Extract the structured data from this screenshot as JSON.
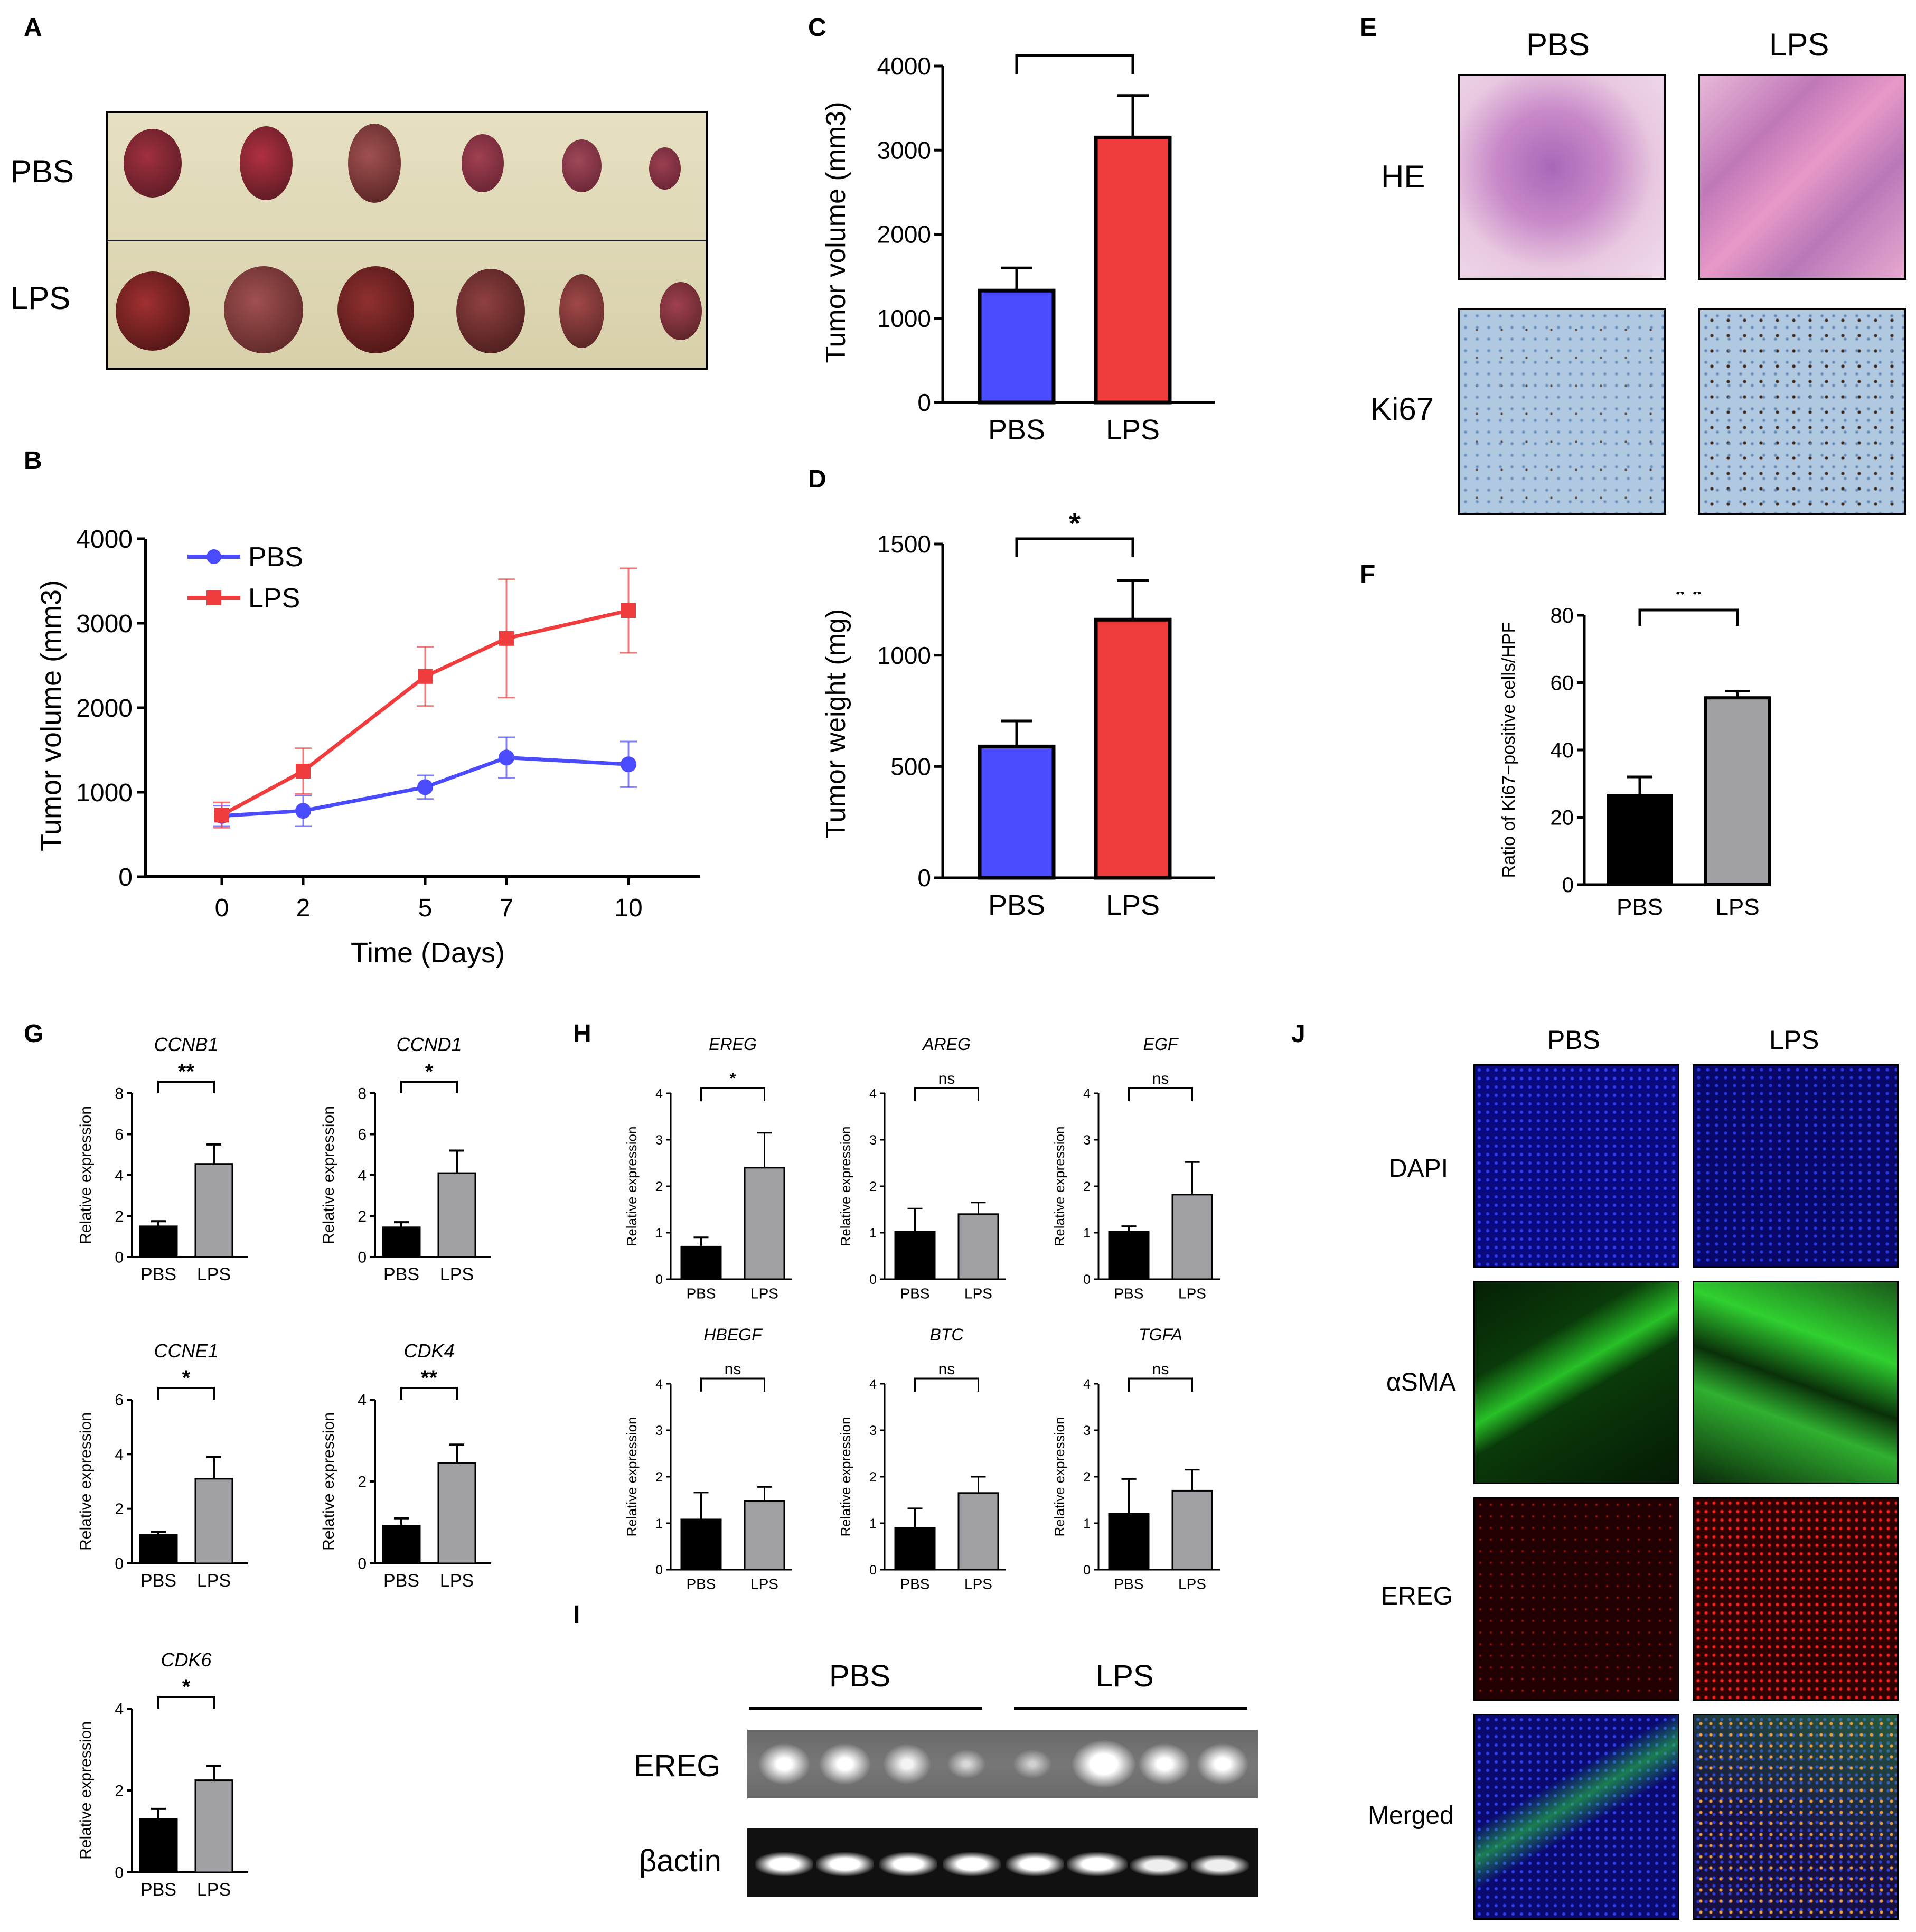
{
  "panels": {
    "A": {
      "label": "A",
      "rows": [
        "PBS",
        "LPS"
      ]
    },
    "B": {
      "label": "B"
    },
    "C": {
      "label": "C"
    },
    "D": {
      "label": "D"
    },
    "E": {
      "label": "E",
      "cols": [
        "PBS",
        "LPS"
      ],
      "rows": [
        "HE",
        "Ki67"
      ]
    },
    "F": {
      "label": "F"
    },
    "G": {
      "label": "G"
    },
    "H": {
      "label": "H"
    },
    "I": {
      "label": "I",
      "groups": [
        "PBS",
        "LPS"
      ],
      "rows": [
        "EREG",
        "βactin"
      ]
    },
    "J": {
      "label": "J",
      "cols": [
        "PBS",
        "LPS"
      ],
      "rows": [
        "DAPI",
        "αSMA",
        "EREG",
        "Merged"
      ]
    }
  },
  "colors": {
    "pbs_blue": "#4a4aff",
    "lps_red": "#f03c3c",
    "black_bar": "#000000",
    "grey_bar": "#a0a0a4"
  },
  "chart_data": [
    {
      "id": "B",
      "type": "line",
      "xlabel": "Time (Days)",
      "ylabel": "Tumor volume (mm3)",
      "x": [
        0,
        2,
        5,
        7,
        10
      ],
      "xticks": [
        "0",
        "2",
        "5",
        "7",
        "10"
      ],
      "ylim": [
        0,
        4000
      ],
      "yticks": [
        "0",
        "1000",
        "2000",
        "3000",
        "4000"
      ],
      "series": [
        {
          "name": "PBS",
          "color": "#4a4aff",
          "marker": "circle",
          "values": [
            720,
            780,
            1060,
            1410,
            1330
          ],
          "err": [
            120,
            180,
            140,
            240,
            270
          ]
        },
        {
          "name": "LPS",
          "color": "#f03c3c",
          "marker": "square",
          "values": [
            730,
            1250,
            2370,
            2820,
            3150
          ],
          "err": [
            150,
            270,
            350,
            700,
            500
          ]
        }
      ],
      "legend": "top-left"
    },
    {
      "id": "C",
      "type": "bar",
      "ylabel": "Tumor volume (mm3)",
      "categories": [
        "PBS",
        "LPS"
      ],
      "values": [
        1330,
        3150
      ],
      "err": [
        270,
        500
      ],
      "colors": [
        "#4a4aff",
        "#f03c3c"
      ],
      "ylim": [
        0,
        4000
      ],
      "yticks": [
        "0",
        "1000",
        "2000",
        "3000",
        "4000"
      ],
      "significance": "**"
    },
    {
      "id": "D",
      "type": "bar",
      "ylabel": "Tumor weight (mg)",
      "categories": [
        "PBS",
        "LPS"
      ],
      "values": [
        590,
        1160
      ],
      "err": [
        115,
        175
      ],
      "colors": [
        "#4a4aff",
        "#f03c3c"
      ],
      "ylim": [
        0,
        1500
      ],
      "yticks": [
        "0",
        "500",
        "1000",
        "1500"
      ],
      "significance": "*"
    },
    {
      "id": "F",
      "type": "bar",
      "ylabel": "Ratio of Ki67−positive cells/HPF",
      "categories": [
        "PBS",
        "LPS"
      ],
      "values": [
        26.5,
        55.5
      ],
      "err": [
        5.5,
        2
      ],
      "colors": [
        "#000000",
        "#a0a0a4"
      ],
      "ylim": [
        0,
        80
      ],
      "yticks": [
        "0",
        "20",
        "40",
        "60",
        "80"
      ],
      "significance": "* *"
    },
    {
      "id": "G-CCNB1",
      "type": "bar",
      "title": "CCNB1",
      "ylabel": "Relative expression",
      "categories": [
        "PBS",
        "LPS"
      ],
      "values": [
        1.5,
        4.55
      ],
      "err": [
        0.25,
        0.95
      ],
      "ylim": [
        0,
        8
      ],
      "yticks": [
        "0",
        "2",
        "4",
        "6",
        "8"
      ],
      "significance": "**"
    },
    {
      "id": "G-CCND1",
      "type": "bar",
      "title": "CCND1",
      "ylabel": "Relative expression",
      "categories": [
        "PBS",
        "LPS"
      ],
      "values": [
        1.45,
        4.1
      ],
      "err": [
        0.25,
        1.1
      ],
      "ylim": [
        0,
        8
      ],
      "yticks": [
        "0",
        "2",
        "4",
        "6",
        "8"
      ],
      "significance": "*"
    },
    {
      "id": "G-CCNE1",
      "type": "bar",
      "title": "CCNE1",
      "ylabel": "Relative expression",
      "categories": [
        "PBS",
        "LPS"
      ],
      "values": [
        1.05,
        3.1
      ],
      "err": [
        0.1,
        0.8
      ],
      "ylim": [
        0,
        6
      ],
      "yticks": [
        "0",
        "2",
        "4",
        "6"
      ],
      "significance": "*"
    },
    {
      "id": "G-CDK4",
      "type": "bar",
      "title": "CDK4",
      "ylabel": "Relative expression",
      "categories": [
        "PBS",
        "LPS"
      ],
      "values": [
        0.92,
        2.45
      ],
      "err": [
        0.18,
        0.45
      ],
      "ylim": [
        0,
        4
      ],
      "yticks": [
        "0",
        "2",
        "4"
      ],
      "significance": "**"
    },
    {
      "id": "G-CDK6",
      "type": "bar",
      "title": "CDK6",
      "ylabel": "Relative expression",
      "categories": [
        "PBS",
        "LPS"
      ],
      "values": [
        1.3,
        2.25
      ],
      "err": [
        0.25,
        0.35
      ],
      "ylim": [
        0,
        4
      ],
      "yticks": [
        "0",
        "2",
        "4"
      ],
      "significance": "*"
    },
    {
      "id": "H-EREG",
      "type": "bar",
      "title": "EREG",
      "ylabel": "Relative expression",
      "categories": [
        "PBS",
        "LPS"
      ],
      "values": [
        0.7,
        2.4
      ],
      "err": [
        0.2,
        0.75
      ],
      "ylim": [
        0,
        4
      ],
      "yticks": [
        "0",
        "1",
        "2",
        "3",
        "4"
      ],
      "significance": "*"
    },
    {
      "id": "H-AREG",
      "type": "bar",
      "title": "AREG",
      "ylabel": "Relative expression",
      "categories": [
        "PBS",
        "LPS"
      ],
      "values": [
        1.02,
        1.4
      ],
      "err": [
        0.5,
        0.25
      ],
      "ylim": [
        0,
        4
      ],
      "yticks": [
        "0",
        "1",
        "2",
        "3",
        "4"
      ],
      "significance": "ns"
    },
    {
      "id": "H-EGF",
      "type": "bar",
      "title": "EGF",
      "ylabel": "Relative expression",
      "categories": [
        "PBS",
        "LPS"
      ],
      "values": [
        1.02,
        1.82
      ],
      "err": [
        0.12,
        0.7
      ],
      "ylim": [
        0,
        4
      ],
      "yticks": [
        "0",
        "1",
        "2",
        "3",
        "4"
      ],
      "significance": "ns"
    },
    {
      "id": "H-HBEGF",
      "type": "bar",
      "title": "HBEGF",
      "ylabel": "Relative expression",
      "categories": [
        "PBS",
        "LPS"
      ],
      "values": [
        1.08,
        1.48
      ],
      "err": [
        0.58,
        0.3
      ],
      "ylim": [
        0,
        4
      ],
      "yticks": [
        "0",
        "1",
        "2",
        "3",
        "4"
      ],
      "significance": "ns"
    },
    {
      "id": "H-BTC",
      "type": "bar",
      "title": "BTC",
      "ylabel": "Relative expression",
      "categories": [
        "PBS",
        "LPS"
      ],
      "values": [
        0.9,
        1.65
      ],
      "err": [
        0.42,
        0.35
      ],
      "ylim": [
        0,
        4
      ],
      "yticks": [
        "0",
        "1",
        "2",
        "3",
        "4"
      ],
      "significance": "ns"
    },
    {
      "id": "H-TGFA",
      "type": "bar",
      "title": "TGFA",
      "ylabel": "Relative expression",
      "categories": [
        "PBS",
        "LPS"
      ],
      "values": [
        1.2,
        1.7
      ],
      "err": [
        0.75,
        0.45
      ],
      "ylim": [
        0,
        4
      ],
      "yticks": [
        "0",
        "1",
        "2",
        "3",
        "4"
      ],
      "significance": "ns"
    }
  ]
}
